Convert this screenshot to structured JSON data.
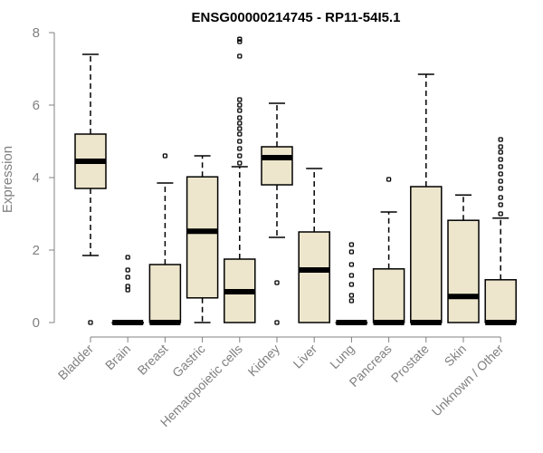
{
  "chart_data": {
    "type": "box",
    "title": "ENSG00000214745 - RP11-54I5.1",
    "ylabel": "Expression",
    "xlabel": "",
    "ylim": [
      0,
      8
    ],
    "yticks": [
      0,
      2,
      4,
      6,
      8
    ],
    "colors": {
      "box_fill": "#ede6cc",
      "box_stroke": "#000000",
      "axis": "#808080"
    },
    "categories": [
      "Bladder",
      "Brain",
      "Breast",
      "Gastric",
      "Hematopoietic cells",
      "Kidney",
      "Liver",
      "Lung",
      "Pancreas",
      "Prostate",
      "Skin",
      "Unknown / Other"
    ],
    "boxes": [
      {
        "category": "Bladder",
        "whisker_low": 1.85,
        "q1": 3.7,
        "median": 4.45,
        "q3": 5.2,
        "whisker_high": 7.4,
        "outliers": [
          0
        ]
      },
      {
        "category": "Brain",
        "whisker_low": 0,
        "q1": 0,
        "median": 0,
        "q3": 0,
        "whisker_high": 0,
        "outliers": [
          0.9,
          1.0,
          1.25,
          1.45,
          1.8
        ]
      },
      {
        "category": "Breast",
        "whisker_low": 0,
        "q1": 0,
        "median": 0,
        "q3": 1.6,
        "whisker_high": 3.85,
        "outliers": [
          4.6
        ]
      },
      {
        "category": "Gastric",
        "whisker_low": 0,
        "q1": 0.68,
        "median": 2.52,
        "q3": 4.02,
        "whisker_high": 4.6,
        "outliers": []
      },
      {
        "category": "Hematopoietic cells",
        "whisker_low": 0,
        "q1": 0,
        "median": 0.85,
        "q3": 1.75,
        "whisker_high": 4.3,
        "outliers": [
          4.4,
          4.6,
          4.8,
          5.0,
          5.2,
          5.35,
          5.5,
          5.65,
          5.85,
          6.0,
          6.15,
          7.35,
          7.75,
          7.82
        ]
      },
      {
        "category": "Kidney",
        "whisker_low": 2.35,
        "q1": 3.8,
        "median": 4.55,
        "q3": 4.85,
        "whisker_high": 6.05,
        "outliers": [
          0,
          1.1
        ]
      },
      {
        "category": "Liver",
        "whisker_low": 0,
        "q1": 0,
        "median": 1.45,
        "q3": 2.5,
        "whisker_high": 4.25,
        "outliers": []
      },
      {
        "category": "Lung",
        "whisker_low": 0,
        "q1": 0,
        "median": 0,
        "q3": 0,
        "whisker_high": 0,
        "outliers": [
          0.6,
          0.75,
          1.05,
          1.3,
          1.6,
          1.95,
          2.15
        ]
      },
      {
        "category": "Pancreas",
        "whisker_low": 0,
        "q1": 0,
        "median": 0,
        "q3": 1.48,
        "whisker_high": 3.05,
        "outliers": [
          3.95
        ]
      },
      {
        "category": "Prostate",
        "whisker_low": 0,
        "q1": 0,
        "median": 0,
        "q3": 3.75,
        "whisker_high": 6.85,
        "outliers": []
      },
      {
        "category": "Skin",
        "whisker_low": 0,
        "q1": 0,
        "median": 0.72,
        "q3": 2.82,
        "whisker_high": 3.52,
        "outliers": []
      },
      {
        "category": "Unknown / Other",
        "whisker_low": 0,
        "q1": 0,
        "median": 0,
        "q3": 1.18,
        "whisker_high": 2.88,
        "outliers": [
          3.0,
          3.25,
          3.45,
          3.7,
          3.9,
          4.1,
          4.3,
          4.5,
          4.7,
          4.85,
          5.05
        ]
      }
    ]
  }
}
